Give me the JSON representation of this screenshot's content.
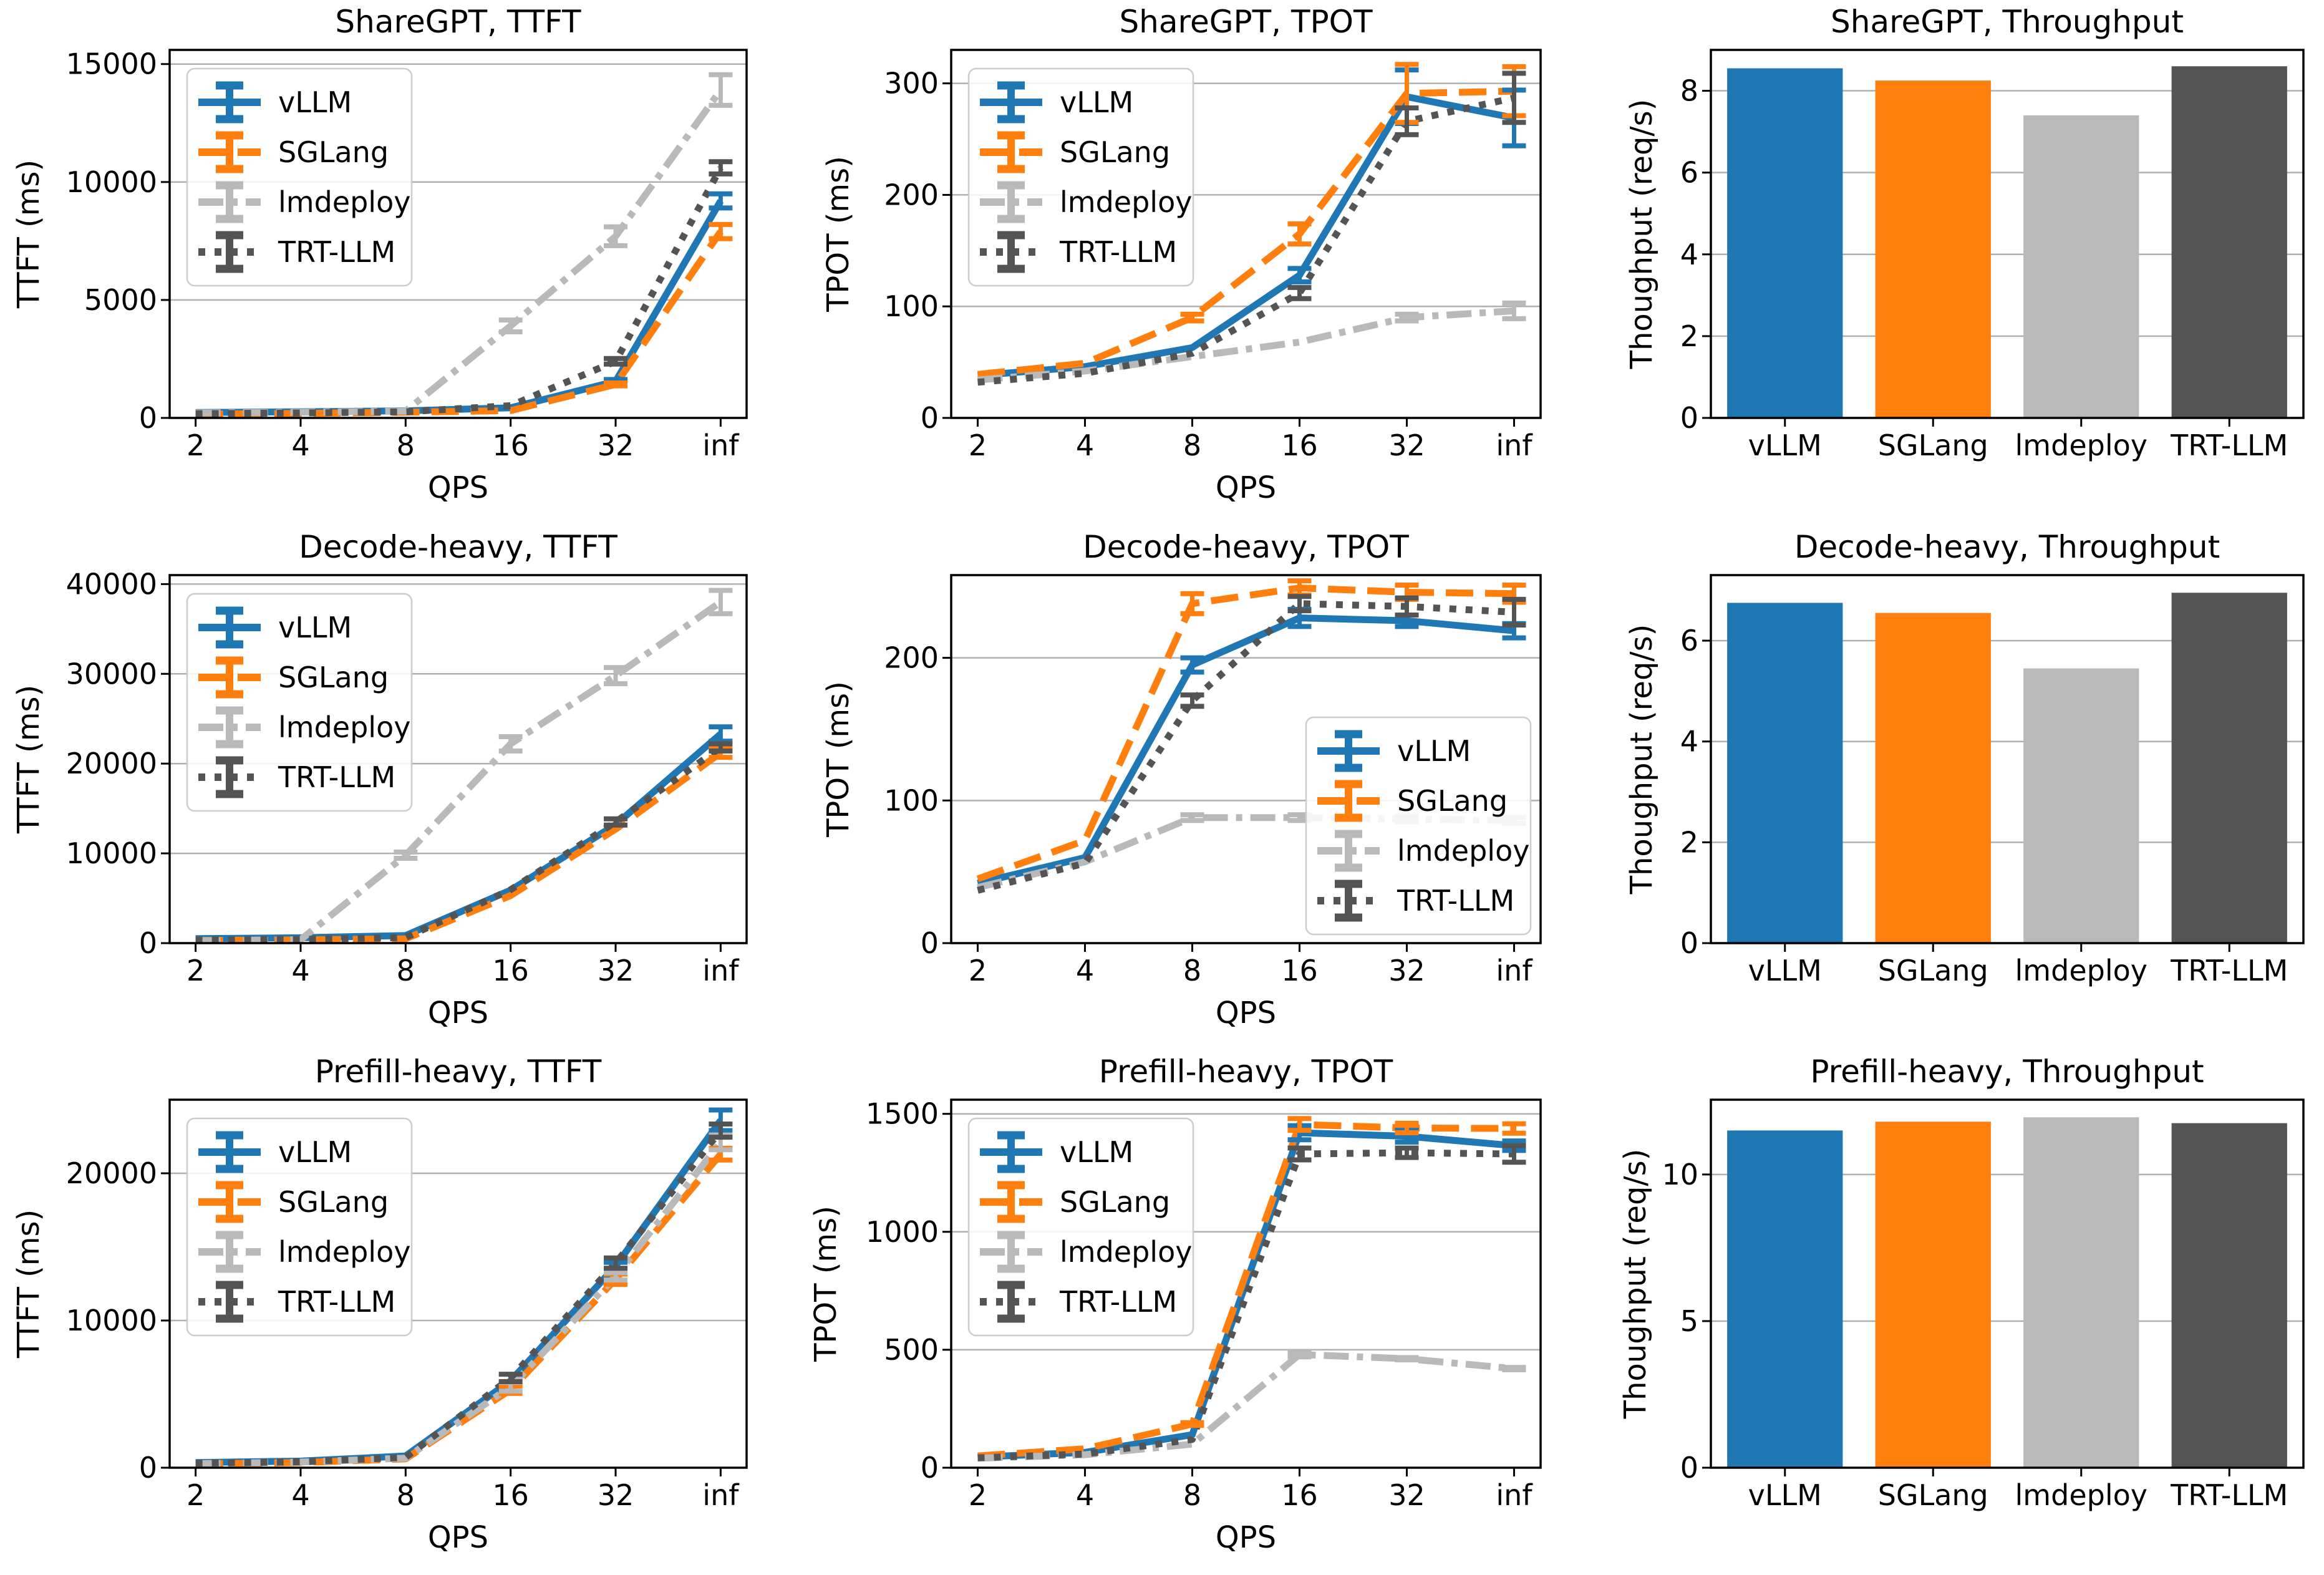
{
  "figure": {
    "x_axis_label": "QPS",
    "x_categories": [
      "2",
      "4",
      "8",
      "16",
      "32",
      "inf"
    ],
    "engines": [
      "vLLM",
      "SGLang",
      "lmdeploy",
      "TRT-LLM"
    ],
    "series_styles": [
      {
        "name": "vLLM",
        "color": "#1f77b4",
        "dash": "solid"
      },
      {
        "name": "SGLang",
        "color": "#ff7f0e",
        "dash": "dashed"
      },
      {
        "name": "lmdeploy",
        "color": "#b9b9b9",
        "dash": "dashdot"
      },
      {
        "name": "TRT-LLM",
        "color": "#545454",
        "dash": "dotted"
      }
    ],
    "grid_color": "#b0b0b0",
    "spine_color": "#000000",
    "legend_border_color": "#cccccc",
    "legend_fill_color": "#ffffff"
  },
  "chart_data": [
    {
      "type": "line",
      "title": "ShareGPT, TTFT",
      "xlabel": "QPS",
      "ylabel": "TTFT (ms)",
      "x": [
        "2",
        "4",
        "8",
        "16",
        "32",
        "inf"
      ],
      "yticks": [
        0,
        5000,
        10000,
        15000
      ],
      "ylim": [
        0,
        15600
      ],
      "legend": "upper-left",
      "grid": true,
      "series": [
        {
          "name": "vLLM",
          "values": [
            230,
            260,
            300,
            430,
            1550,
            9200
          ],
          "errors": [
            0,
            0,
            0,
            0,
            80,
            300
          ]
        },
        {
          "name": "SGLang",
          "values": [
            160,
            190,
            240,
            310,
            1420,
            7900
          ],
          "errors": [
            0,
            0,
            0,
            0,
            60,
            300
          ]
        },
        {
          "name": "lmdeploy",
          "values": [
            210,
            240,
            290,
            3900,
            7700,
            13900
          ],
          "errors": [
            0,
            0,
            0,
            250,
            400,
            650
          ]
        },
        {
          "name": "TRT-LLM",
          "values": [
            180,
            210,
            260,
            520,
            2400,
            10600
          ],
          "errors": [
            0,
            0,
            0,
            0,
            120,
            260
          ]
        }
      ]
    },
    {
      "type": "line",
      "title": "ShareGPT, TPOT",
      "xlabel": "QPS",
      "ylabel": "TPOT (ms)",
      "x": [
        "2",
        "4",
        "8",
        "16",
        "32",
        "inf"
      ],
      "yticks": [
        0,
        100,
        200,
        300
      ],
      "ylim": [
        0,
        330
      ],
      "legend": "upper-left",
      "grid": true,
      "series": [
        {
          "name": "vLLM",
          "values": [
            38,
            46,
            63,
            128,
            288,
            269
          ],
          "errors": [
            0,
            0,
            0,
            6,
            24,
            25
          ]
        },
        {
          "name": "SGLang",
          "values": [
            39,
            49,
            90,
            165,
            291,
            293
          ],
          "errors": [
            0,
            0,
            3,
            9,
            26,
            22
          ]
        },
        {
          "name": "lmdeploy",
          "values": [
            34,
            42,
            55,
            68,
            90,
            96
          ],
          "errors": [
            0,
            0,
            0,
            0,
            3,
            7
          ]
        },
        {
          "name": "TRT-LLM",
          "values": [
            32,
            40,
            58,
            112,
            266,
            287
          ],
          "errors": [
            0,
            0,
            0,
            5,
            12,
            22
          ]
        }
      ]
    },
    {
      "type": "bar",
      "title": "ShareGPT, Throughput",
      "xlabel": "",
      "ylabel": "Thoughput (req/s)",
      "categories": [
        "vLLM",
        "SGLang",
        "lmdeploy",
        "TRT-LLM"
      ],
      "values": [
        8.55,
        8.25,
        7.4,
        8.6
      ],
      "yticks": [
        0,
        2,
        4,
        6,
        8
      ],
      "ylim": [
        0,
        9.0
      ],
      "legend": null,
      "grid": true
    },
    {
      "type": "line",
      "title": "Decode-heavy, TTFT",
      "xlabel": "QPS",
      "ylabel": "TTFT (ms)",
      "x": [
        "2",
        "4",
        "8",
        "16",
        "32",
        "inf"
      ],
      "yticks": [
        0,
        10000,
        20000,
        30000,
        40000
      ],
      "ylim": [
        0,
        41000
      ],
      "legend": "upper-left",
      "grid": true,
      "series": [
        {
          "name": "vLLM",
          "values": [
            500,
            600,
            850,
            5900,
            13200,
            23300
          ],
          "errors": [
            0,
            0,
            0,
            0,
            0,
            800
          ]
        },
        {
          "name": "SGLang",
          "values": [
            300,
            360,
            480,
            5300,
            12700,
            21200
          ],
          "errors": [
            0,
            0,
            0,
            0,
            0,
            500
          ]
        },
        {
          "name": "lmdeploy",
          "values": [
            260,
            380,
            9800,
            22200,
            29800,
            38000
          ],
          "errors": [
            0,
            0,
            350,
            800,
            900,
            1300
          ]
        },
        {
          "name": "TRT-LLM",
          "values": [
            360,
            430,
            620,
            5950,
            13500,
            21800
          ],
          "errors": [
            0,
            0,
            0,
            0,
            350,
            400
          ]
        }
      ]
    },
    {
      "type": "line",
      "title": "Decode-heavy, TPOT",
      "xlabel": "QPS",
      "ylabel": "TPOT (ms)",
      "x": [
        "2",
        "4",
        "8",
        "16",
        "32",
        "inf"
      ],
      "yticks": [
        0,
        100,
        200
      ],
      "ylim": [
        0,
        258
      ],
      "legend": "lower-right",
      "grid": true,
      "series": [
        {
          "name": "vLLM",
          "values": [
            42,
            60,
            195,
            228,
            226,
            219
          ],
          "errors": [
            0,
            0,
            5,
            6,
            4,
            5
          ]
        },
        {
          "name": "SGLang",
          "values": [
            45,
            72,
            238,
            249,
            246,
            245
          ],
          "errors": [
            0,
            0,
            7,
            5,
            5,
            6
          ]
        },
        {
          "name": "lmdeploy",
          "values": [
            39,
            57,
            88,
            88,
            87,
            86
          ],
          "errors": [
            0,
            0,
            2,
            2,
            2,
            2
          ]
        },
        {
          "name": "TRT-LLM",
          "values": [
            37,
            56,
            170,
            238,
            236,
            232
          ],
          "errors": [
            0,
            0,
            4,
            5,
            6,
            9
          ]
        }
      ]
    },
    {
      "type": "bar",
      "title": "Decode-heavy, Throughput",
      "xlabel": "",
      "ylabel": "Thoughput (req/s)",
      "categories": [
        "vLLM",
        "SGLang",
        "lmdeploy",
        "TRT-LLM"
      ],
      "values": [
        6.75,
        6.55,
        5.45,
        6.95
      ],
      "yticks": [
        0,
        2,
        4,
        6
      ],
      "ylim": [
        0,
        7.3
      ],
      "legend": null,
      "grid": true
    },
    {
      "type": "line",
      "title": "Prefill-heavy, TTFT",
      "xlabel": "QPS",
      "ylabel": "TTFT (ms)",
      "x": [
        "2",
        "4",
        "8",
        "16",
        "32",
        "inf"
      ],
      "yticks": [
        0,
        10000,
        20000
      ],
      "ylim": [
        0,
        25000
      ],
      "legend": "upper-left",
      "grid": true,
      "series": [
        {
          "name": "vLLM",
          "values": [
            350,
            450,
            800,
            5900,
            13700,
            23600
          ],
          "errors": [
            0,
            0,
            0,
            0,
            250,
            700
          ]
        },
        {
          "name": "SGLang",
          "values": [
            250,
            350,
            600,
            5300,
            12800,
            21300
          ],
          "errors": [
            0,
            0,
            0,
            250,
            350,
            400
          ]
        },
        {
          "name": "lmdeploy",
          "values": [
            280,
            380,
            650,
            5500,
            13000,
            22100
          ],
          "errors": [
            0,
            0,
            0,
            300,
            250,
            500
          ]
        },
        {
          "name": "TRT-LLM",
          "values": [
            300,
            400,
            700,
            6100,
            13900,
            22900
          ],
          "errors": [
            0,
            0,
            0,
            250,
            350,
            450
          ]
        }
      ]
    },
    {
      "type": "line",
      "title": "Prefill-heavy, TPOT",
      "xlabel": "QPS",
      "ylabel": "TPOT (ms)",
      "x": [
        "2",
        "4",
        "8",
        "16",
        "32",
        "inf"
      ],
      "yticks": [
        0,
        500,
        1000,
        1500
      ],
      "ylim": [
        0,
        1560
      ],
      "legend": "upper-left",
      "grid": true,
      "series": [
        {
          "name": "vLLM",
          "values": [
            45,
            65,
            140,
            1420,
            1405,
            1365
          ],
          "errors": [
            0,
            0,
            0,
            30,
            25,
            20
          ]
        },
        {
          "name": "SGLang",
          "values": [
            50,
            80,
            185,
            1455,
            1440,
            1438
          ],
          "errors": [
            0,
            0,
            6,
            25,
            20,
            20
          ]
        },
        {
          "name": "lmdeploy",
          "values": [
            40,
            55,
            100,
            480,
            462,
            420
          ],
          "errors": [
            0,
            0,
            0,
            10,
            5,
            5
          ]
        },
        {
          "name": "TRT-LLM",
          "values": [
            42,
            58,
            120,
            1330,
            1335,
            1330
          ],
          "errors": [
            0,
            0,
            0,
            25,
            20,
            35
          ]
        }
      ]
    },
    {
      "type": "bar",
      "title": "Prefill-heavy, Throughput",
      "xlabel": "",
      "ylabel": "Thoughput (req/s)",
      "categories": [
        "vLLM",
        "SGLang",
        "lmdeploy",
        "TRT-LLM"
      ],
      "values": [
        11.5,
        11.8,
        11.95,
        11.75
      ],
      "yticks": [
        0,
        5,
        10
      ],
      "ylim": [
        0,
        12.55
      ],
      "legend": null,
      "grid": true
    }
  ]
}
